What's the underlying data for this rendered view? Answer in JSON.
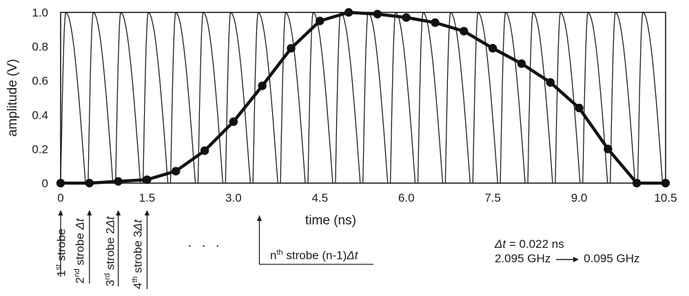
{
  "chart_data": {
    "type": "line",
    "xlabel": "time (ns)",
    "ylabel": "amplitude (V)",
    "xlim": [
      0,
      10.5
    ],
    "ylim": [
      0,
      1.0
    ],
    "x_ticks": [
      "0",
      "1.5",
      "3.0",
      "4.5",
      "6.0",
      "7.5",
      "9.0",
      "10.5"
    ],
    "y_ticks": [
      "0",
      "0.2",
      "0.4",
      "0.6",
      "0.8",
      "1.0"
    ],
    "grid": false,
    "series": [
      {
        "style": "thick-line-with-markers",
        "x": [
          0.0,
          0.5,
          1.0,
          1.5,
          2.0,
          2.5,
          3.0,
          3.5,
          4.0,
          4.5,
          5.0,
          5.5,
          6.0,
          6.5,
          7.0,
          7.5,
          8.0,
          8.5,
          9.0,
          9.5,
          10.0,
          10.5
        ],
        "y": [
          0.0,
          0.0,
          0.01,
          0.02,
          0.07,
          0.19,
          0.36,
          0.57,
          0.79,
          0.95,
          1.0,
          0.99,
          0.97,
          0.94,
          0.89,
          0.79,
          0.7,
          0.59,
          0.44,
          0.2,
          0.0,
          0.0
        ]
      },
      {
        "style": "thin-sweep-line",
        "description_free": true,
        "period": 0.477,
        "count": 22
      }
    ]
  },
  "annotations": {
    "strobes": [
      {
        "ordinal": "1",
        "sup": "st",
        "text": " strobe",
        "suffix": ""
      },
      {
        "ordinal": "2",
        "sup": "nd",
        "text": " strobe ",
        "suffix": "Δt"
      },
      {
        "ordinal": "3",
        "sup": "rd",
        "text": " strobe 2",
        "suffix": "Δt"
      },
      {
        "ordinal": "4",
        "sup": "th",
        "text": " strobe 3",
        "suffix": "Δt"
      }
    ],
    "dots": "· · ·",
    "nth": {
      "ordinal": "n",
      "sup": "th",
      "text": " strobe (n-1)",
      "suffix": "Δt"
    },
    "delta_t_symbol": "Δt",
    "delta_t_value": " = 0.022 ns",
    "freq_from": "2.095 GHz",
    "freq_to": "0.095 GHz"
  }
}
